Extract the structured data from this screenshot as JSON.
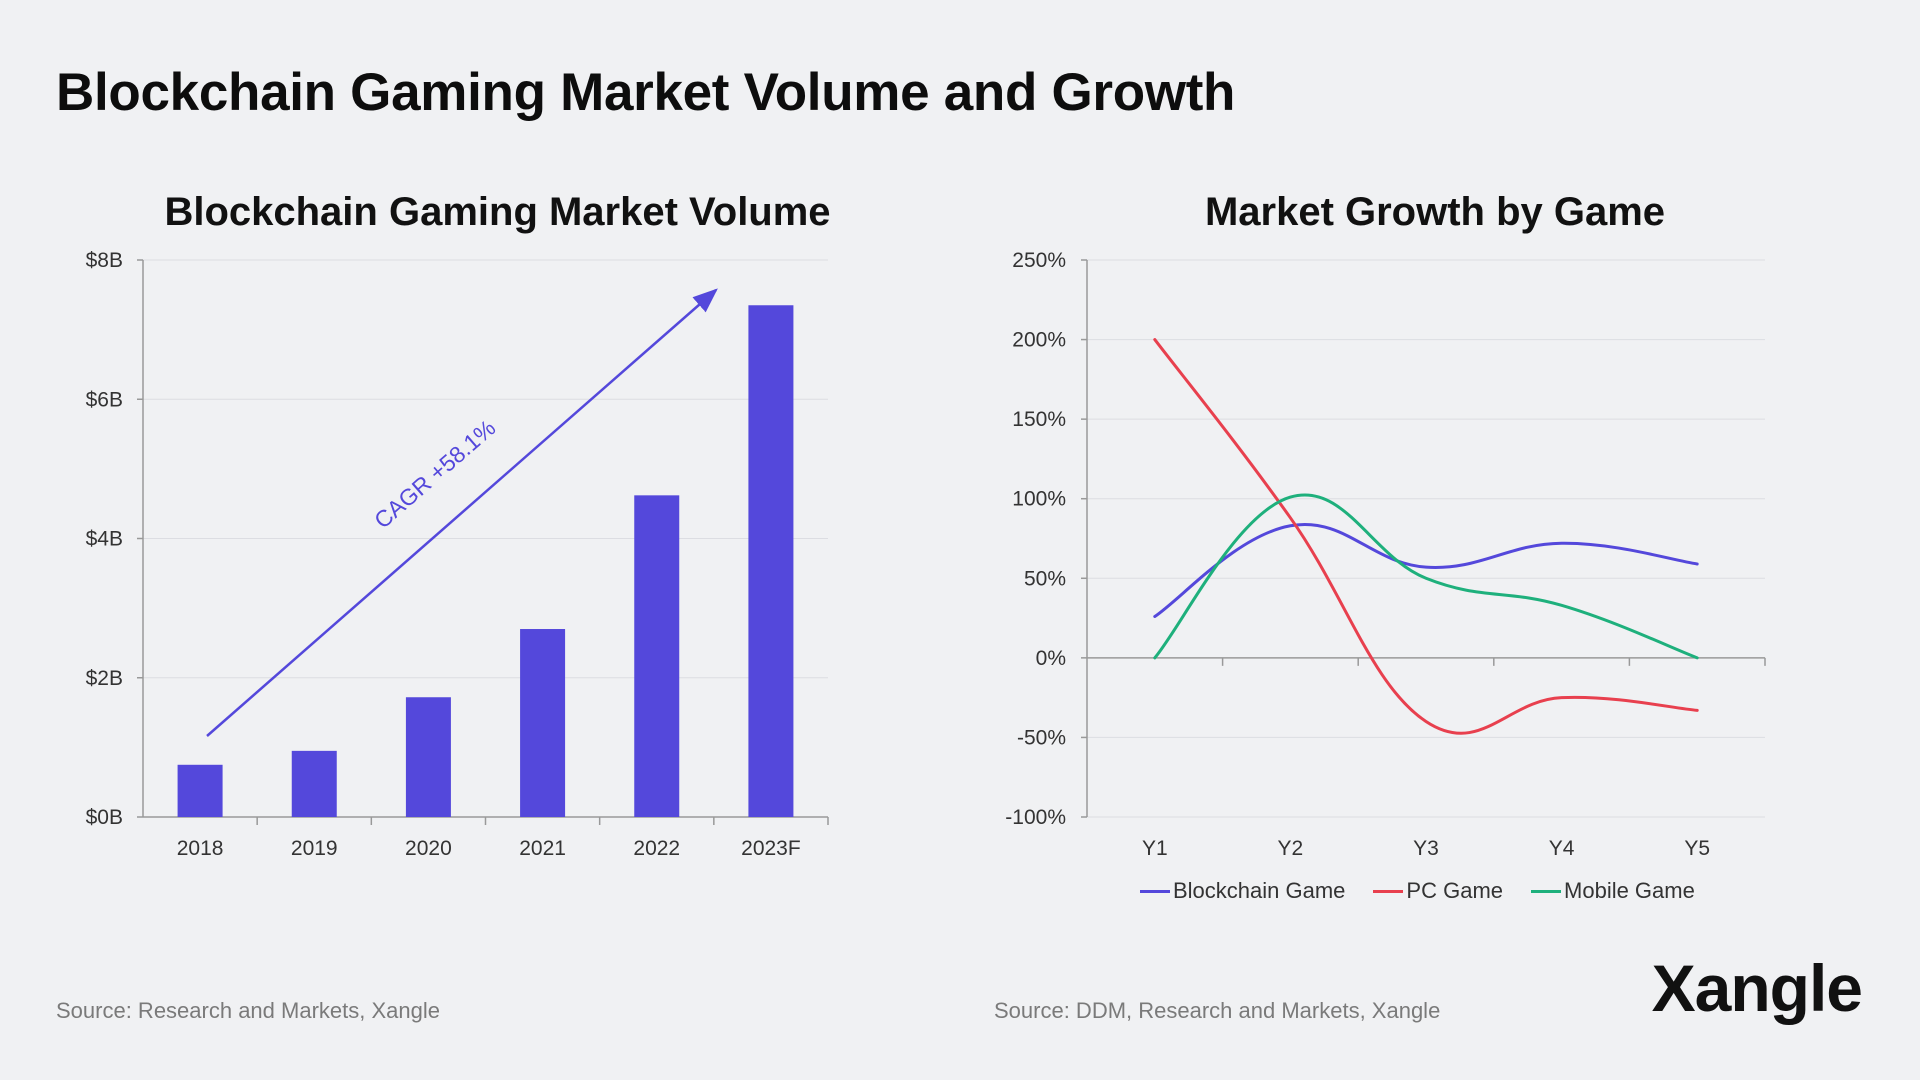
{
  "header": {
    "title": "Blockchain Gaming Market Volume and Growth"
  },
  "chart_data": [
    {
      "type": "bar",
      "title": "Blockchain Gaming Market Volume",
      "categories": [
        "2018",
        "2019",
        "2020",
        "2021",
        "2022",
        "2023F"
      ],
      "values": [
        0.75,
        0.95,
        1.72,
        2.7,
        4.62,
        7.35
      ],
      "unit": "$B",
      "ylim": [
        0,
        8
      ],
      "yticks": [
        0,
        2,
        4,
        6,
        8
      ],
      "ytick_labels": [
        "$0B",
        "$2B",
        "$4B",
        "$6B",
        "$8B"
      ],
      "color": "#5448db",
      "annotation": {
        "text": "CAGR +58.1%"
      },
      "source": "Source: Research and Markets, Xangle"
    },
    {
      "type": "line",
      "title": "Market Growth by Game",
      "x": [
        "Y1",
        "Y2",
        "Y3",
        "Y4",
        "Y5"
      ],
      "ylim": [
        -100,
        250
      ],
      "yticks": [
        -100,
        -50,
        0,
        50,
        100,
        150,
        200,
        250
      ],
      "ytick_labels": [
        "-100%",
        "-50%",
        "0%",
        "50%",
        "100%",
        "150%",
        "200%",
        "250%"
      ],
      "series": [
        {
          "name": "Blockchain Game",
          "color": "#5448db",
          "values": [
            26,
            83,
            57,
            72,
            59
          ]
        },
        {
          "name": "PC Game",
          "color": "#e8404e",
          "values": [
            200,
            88,
            -40,
            -25,
            -33
          ]
        },
        {
          "name": "Mobile Game",
          "color": "#1eb07c",
          "values": [
            0,
            101,
            50,
            33,
            0
          ]
        }
      ],
      "legend_position": "bottom",
      "source": "Source: DDM, Research and Markets, Xangle"
    }
  ],
  "brand": {
    "name": "Xangle"
  }
}
